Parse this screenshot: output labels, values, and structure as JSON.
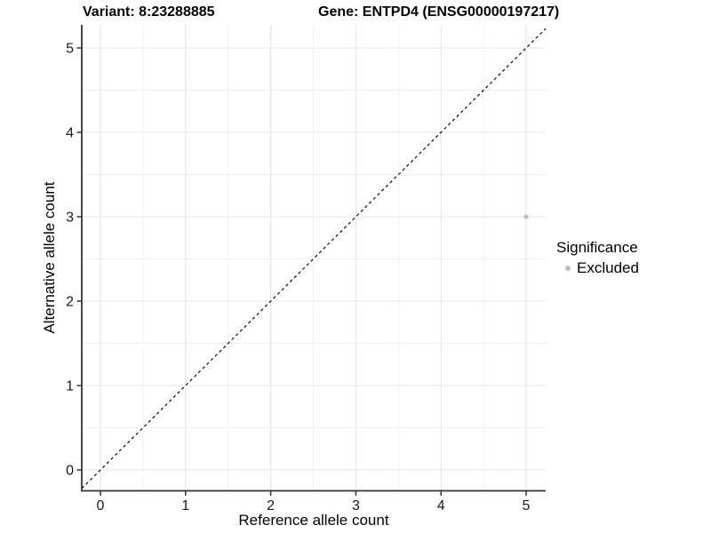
{
  "header": {
    "variant_label": "Variant: 8:23288885",
    "gene_label": "Gene: ENTPD4 (ENSG00000197217)"
  },
  "chart_data": {
    "type": "scatter",
    "title": "Variant: 8:23288885    Gene: ENTPD4 (ENSG00000197217)",
    "xlabel": "Reference allele count",
    "ylabel": "Alternative allele count",
    "xlim": [
      -0.25,
      5.25
    ],
    "ylim": [
      -0.25,
      5.25
    ],
    "x_ticks": [
      0,
      1,
      2,
      3,
      4,
      5
    ],
    "y_ticks": [
      0,
      1,
      2,
      3,
      4,
      5
    ],
    "minor_grid_step": 0.5,
    "grid": true,
    "series": [
      {
        "name": "Excluded",
        "color": "#bdbdbd",
        "points": [
          {
            "x": 5,
            "y": 3
          }
        ]
      }
    ],
    "reference_line": {
      "equation": "y = x",
      "style": "dashed",
      "color": "#000000"
    },
    "legend": {
      "title": "Significance",
      "position": "right",
      "entries": [
        {
          "label": "Excluded",
          "color": "#bdbdbd"
        }
      ]
    }
  },
  "colors": {
    "background": "#ffffff",
    "point": "#bdbdbd",
    "grid_major": "#e4e4e4",
    "grid_minor": "#efefef",
    "axis": "#333333",
    "tick_text": "#1a1a1a",
    "reference_line": "#000000"
  }
}
